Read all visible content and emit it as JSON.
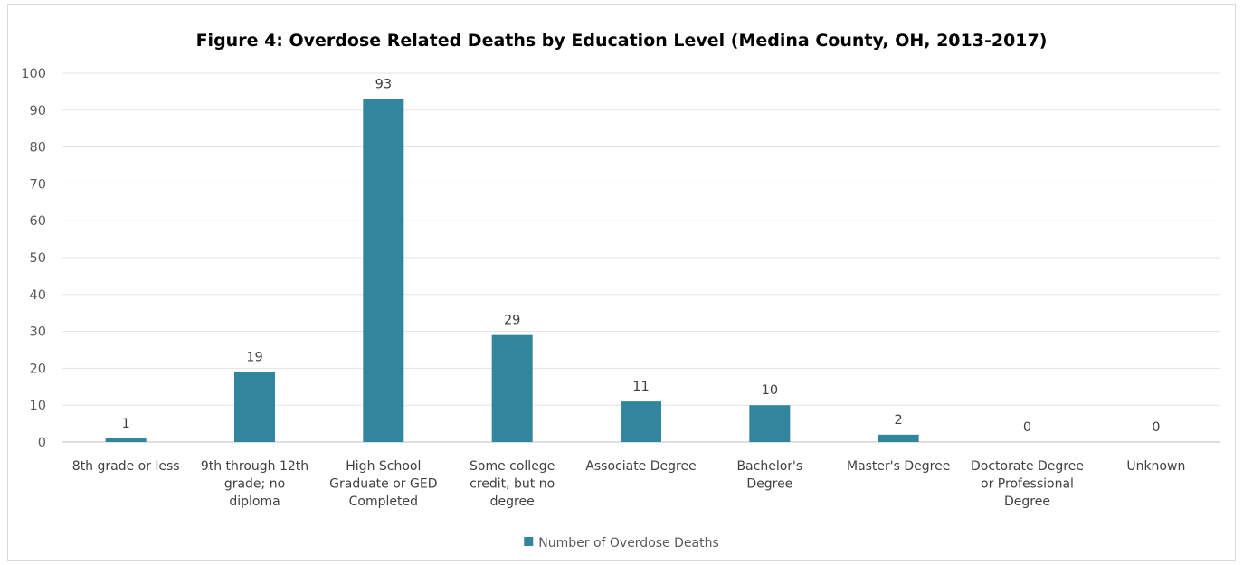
{
  "chart_data": {
    "type": "bar",
    "title": "Figure 4: Overdose Related Deaths by Education Level (Medina County, OH, 2013-2017)",
    "xlabel": "",
    "ylabel": "",
    "ylim": [
      0,
      100
    ],
    "yticks": [
      0,
      10,
      20,
      30,
      40,
      50,
      60,
      70,
      80,
      90,
      100
    ],
    "grid": true,
    "legend_position": "bottom",
    "categories": [
      [
        "8th grade or less"
      ],
      [
        "9th through 12th",
        "grade; no",
        "diploma"
      ],
      [
        "High School",
        "Graduate or GED",
        "Completed"
      ],
      [
        "Some college",
        "credit, but no",
        "degree"
      ],
      [
        "Associate Degree"
      ],
      [
        "Bachelor's",
        "Degree"
      ],
      [
        "Master's Degree"
      ],
      [
        "Doctorate Degree",
        "or Professional",
        "Degree"
      ],
      [
        "Unknown"
      ]
    ],
    "series": [
      {
        "name": "Number of Overdose Deaths",
        "color": "#31859c",
        "values": [
          1,
          19,
          93,
          29,
          11,
          10,
          2,
          0,
          0
        ]
      }
    ]
  }
}
